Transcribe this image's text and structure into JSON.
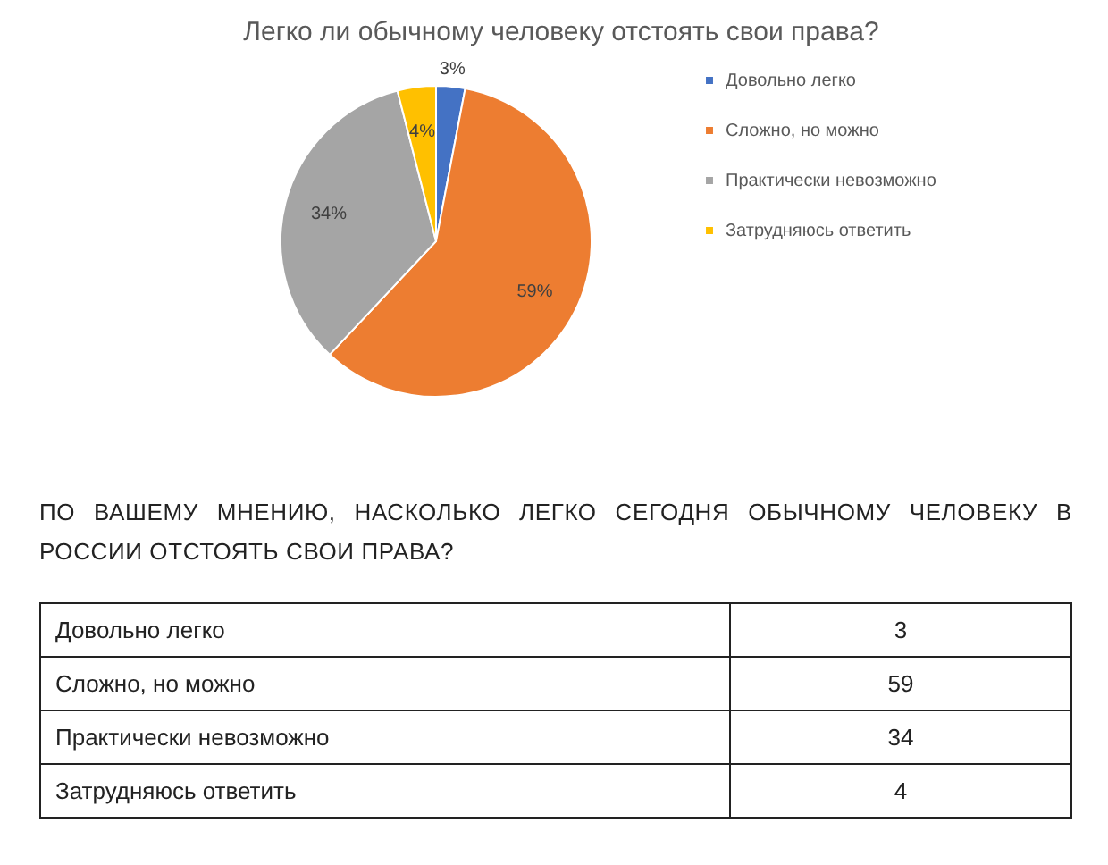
{
  "chart_data": {
    "type": "pie",
    "title": "Легко ли обычному человеку отстоять свои права?",
    "categories": [
      "Довольно легко",
      "Сложно, но можно",
      "Практически невозможно",
      "Затрудняюсь ответить"
    ],
    "values": [
      3,
      59,
      34,
      4
    ],
    "colors": [
      "#4472c4",
      "#ed7d31",
      "#a5a5a5",
      "#ffc000"
    ],
    "value_labels": [
      "3%",
      "59%",
      "34%",
      "4%"
    ],
    "legend": "right",
    "annotations": [
      "ПО ВАШЕМУ МНЕНИЮ, НАСКОЛЬКО ЛЕГКО СЕГОДНЯ ОБЫЧНОМУ ЧЕЛОВЕКУ В РОССИИ ОТСТОЯТЬ СВОИ ПРАВА?",
      "3",
      "59",
      "34",
      "4"
    ]
  }
}
